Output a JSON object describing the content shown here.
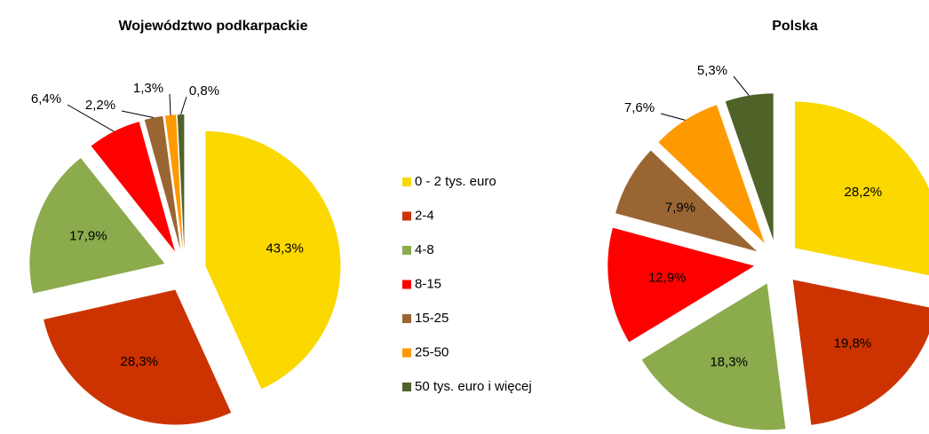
{
  "chart_data": [
    {
      "type": "pie",
      "title": "Województwo podkarpackie",
      "categories": [
        "0 - 2 tys. euro",
        "2-4",
        "4-8",
        "8-15",
        "15-25",
        "25-50",
        "50 tys. euro i więcej"
      ],
      "values": [
        43.3,
        28.3,
        17.9,
        6.4,
        2.2,
        1.3,
        0.8
      ],
      "value_labels": [
        "43,3%",
        "28,3%",
        "17,9%",
        "6,4%",
        "2,2%",
        "1,3%",
        "0,8%"
      ],
      "colors": [
        "#fad800",
        "#cc3300",
        "#8cab4d",
        "#ff0000",
        "#996633",
        "#ff9900",
        "#4f6228"
      ]
    },
    {
      "type": "pie",
      "title": "Polska",
      "categories": [
        "0 - 2 tys. euro",
        "2-4",
        "4-8",
        "8-15",
        "15-25",
        "25-50",
        "50 tys. euro i więcej"
      ],
      "values": [
        28.2,
        19.8,
        18.3,
        12.9,
        7.9,
        7.6,
        5.3
      ],
      "value_labels": [
        "28,2%",
        "19,8%",
        "18,3%",
        "12,9%",
        "7,9%",
        "7,6%",
        "5,3%"
      ],
      "colors": [
        "#fad800",
        "#cc3300",
        "#8cab4d",
        "#ff0000",
        "#996633",
        "#ff9900",
        "#4f6228"
      ]
    }
  ]
}
